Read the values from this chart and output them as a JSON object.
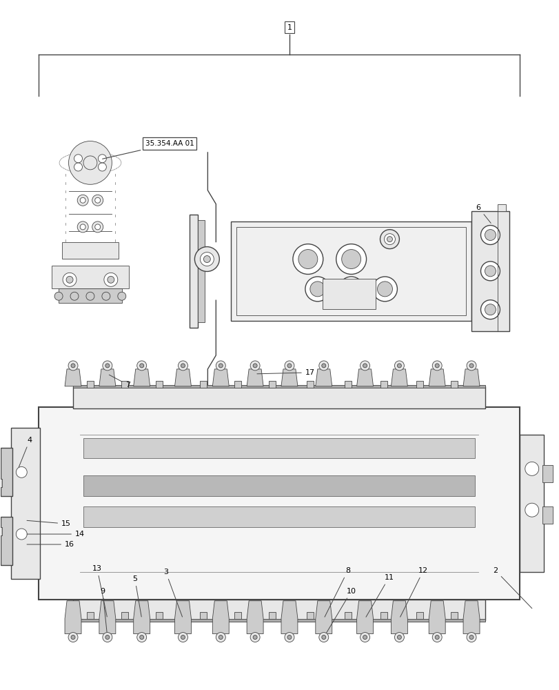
{
  "bg_color": "#ffffff",
  "line_color": "#444444",
  "label_color": "#000000",
  "fig_width": 8.12,
  "fig_height": 10.0,
  "dpi": 100,
  "swivel_label": "35.354.AA 01",
  "part1_label": "1",
  "part6_label": "6",
  "lc": "#444444",
  "lc_dark": "#222222",
  "gray_light": "#e8e8e8",
  "gray_mid": "#cccccc",
  "gray_dark": "#aaaaaa"
}
